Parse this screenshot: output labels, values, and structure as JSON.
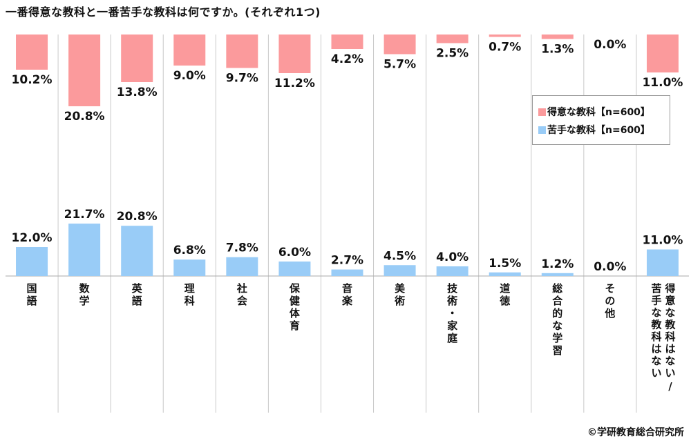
{
  "title": "一番得意な教科と一番苦手な教科は何ですか。(それぞれ1つ)",
  "copyright": "©学研教育総合研究所",
  "chart_data": {
    "type": "bar",
    "categories": [
      "国語",
      "数学",
      "英語",
      "理科",
      "社会",
      "保健体育",
      "音楽",
      "美術",
      "技術・家庭",
      "道徳",
      "総合的な学習",
      "その他",
      "得意な教科はない/苦手な教科はない"
    ],
    "series": [
      {
        "name": "得意な教科【n=600】",
        "color": "#fb9a9c",
        "values": [
          10.2,
          20.8,
          13.8,
          9.0,
          9.7,
          11.2,
          4.2,
          5.7,
          2.5,
          0.7,
          1.3,
          0.0,
          11.0
        ]
      },
      {
        "name": "苦手な教科【n=600】",
        "color": "#99ccf7",
        "values": [
          12.0,
          21.7,
          20.8,
          6.8,
          7.8,
          6.0,
          2.7,
          4.5,
          4.0,
          1.5,
          1.2,
          0.0,
          11.0
        ]
      }
    ],
    "value_format": "%",
    "legend_position": "right"
  }
}
